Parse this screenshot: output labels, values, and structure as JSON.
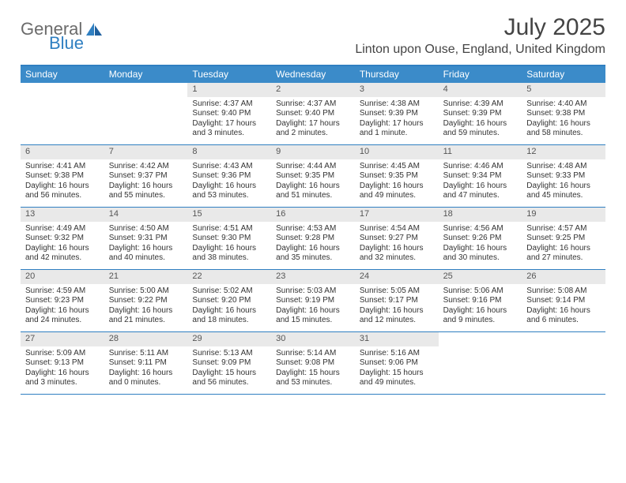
{
  "logo": {
    "text1": "General",
    "text2": "Blue"
  },
  "title": "July 2025",
  "location": "Linton upon Ouse, England, United Kingdom",
  "colors": {
    "header_bg": "#3b8bc9",
    "border": "#2f7fc1",
    "daynum_bg": "#e9e9e9"
  },
  "dow": [
    "Sunday",
    "Monday",
    "Tuesday",
    "Wednesday",
    "Thursday",
    "Friday",
    "Saturday"
  ],
  "weeks": [
    [
      {
        "n": "",
        "sunrise": "",
        "sunset": "",
        "daylight": ""
      },
      {
        "n": "",
        "sunrise": "",
        "sunset": "",
        "daylight": ""
      },
      {
        "n": "1",
        "sunrise": "Sunrise: 4:37 AM",
        "sunset": "Sunset: 9:40 PM",
        "daylight": "Daylight: 17 hours and 3 minutes."
      },
      {
        "n": "2",
        "sunrise": "Sunrise: 4:37 AM",
        "sunset": "Sunset: 9:40 PM",
        "daylight": "Daylight: 17 hours and 2 minutes."
      },
      {
        "n": "3",
        "sunrise": "Sunrise: 4:38 AM",
        "sunset": "Sunset: 9:39 PM",
        "daylight": "Daylight: 17 hours and 1 minute."
      },
      {
        "n": "4",
        "sunrise": "Sunrise: 4:39 AM",
        "sunset": "Sunset: 9:39 PM",
        "daylight": "Daylight: 16 hours and 59 minutes."
      },
      {
        "n": "5",
        "sunrise": "Sunrise: 4:40 AM",
        "sunset": "Sunset: 9:38 PM",
        "daylight": "Daylight: 16 hours and 58 minutes."
      }
    ],
    [
      {
        "n": "6",
        "sunrise": "Sunrise: 4:41 AM",
        "sunset": "Sunset: 9:38 PM",
        "daylight": "Daylight: 16 hours and 56 minutes."
      },
      {
        "n": "7",
        "sunrise": "Sunrise: 4:42 AM",
        "sunset": "Sunset: 9:37 PM",
        "daylight": "Daylight: 16 hours and 55 minutes."
      },
      {
        "n": "8",
        "sunrise": "Sunrise: 4:43 AM",
        "sunset": "Sunset: 9:36 PM",
        "daylight": "Daylight: 16 hours and 53 minutes."
      },
      {
        "n": "9",
        "sunrise": "Sunrise: 4:44 AM",
        "sunset": "Sunset: 9:35 PM",
        "daylight": "Daylight: 16 hours and 51 minutes."
      },
      {
        "n": "10",
        "sunrise": "Sunrise: 4:45 AM",
        "sunset": "Sunset: 9:35 PM",
        "daylight": "Daylight: 16 hours and 49 minutes."
      },
      {
        "n": "11",
        "sunrise": "Sunrise: 4:46 AM",
        "sunset": "Sunset: 9:34 PM",
        "daylight": "Daylight: 16 hours and 47 minutes."
      },
      {
        "n": "12",
        "sunrise": "Sunrise: 4:48 AM",
        "sunset": "Sunset: 9:33 PM",
        "daylight": "Daylight: 16 hours and 45 minutes."
      }
    ],
    [
      {
        "n": "13",
        "sunrise": "Sunrise: 4:49 AM",
        "sunset": "Sunset: 9:32 PM",
        "daylight": "Daylight: 16 hours and 42 minutes."
      },
      {
        "n": "14",
        "sunrise": "Sunrise: 4:50 AM",
        "sunset": "Sunset: 9:31 PM",
        "daylight": "Daylight: 16 hours and 40 minutes."
      },
      {
        "n": "15",
        "sunrise": "Sunrise: 4:51 AM",
        "sunset": "Sunset: 9:30 PM",
        "daylight": "Daylight: 16 hours and 38 minutes."
      },
      {
        "n": "16",
        "sunrise": "Sunrise: 4:53 AM",
        "sunset": "Sunset: 9:28 PM",
        "daylight": "Daylight: 16 hours and 35 minutes."
      },
      {
        "n": "17",
        "sunrise": "Sunrise: 4:54 AM",
        "sunset": "Sunset: 9:27 PM",
        "daylight": "Daylight: 16 hours and 32 minutes."
      },
      {
        "n": "18",
        "sunrise": "Sunrise: 4:56 AM",
        "sunset": "Sunset: 9:26 PM",
        "daylight": "Daylight: 16 hours and 30 minutes."
      },
      {
        "n": "19",
        "sunrise": "Sunrise: 4:57 AM",
        "sunset": "Sunset: 9:25 PM",
        "daylight": "Daylight: 16 hours and 27 minutes."
      }
    ],
    [
      {
        "n": "20",
        "sunrise": "Sunrise: 4:59 AM",
        "sunset": "Sunset: 9:23 PM",
        "daylight": "Daylight: 16 hours and 24 minutes."
      },
      {
        "n": "21",
        "sunrise": "Sunrise: 5:00 AM",
        "sunset": "Sunset: 9:22 PM",
        "daylight": "Daylight: 16 hours and 21 minutes."
      },
      {
        "n": "22",
        "sunrise": "Sunrise: 5:02 AM",
        "sunset": "Sunset: 9:20 PM",
        "daylight": "Daylight: 16 hours and 18 minutes."
      },
      {
        "n": "23",
        "sunrise": "Sunrise: 5:03 AM",
        "sunset": "Sunset: 9:19 PM",
        "daylight": "Daylight: 16 hours and 15 minutes."
      },
      {
        "n": "24",
        "sunrise": "Sunrise: 5:05 AM",
        "sunset": "Sunset: 9:17 PM",
        "daylight": "Daylight: 16 hours and 12 minutes."
      },
      {
        "n": "25",
        "sunrise": "Sunrise: 5:06 AM",
        "sunset": "Sunset: 9:16 PM",
        "daylight": "Daylight: 16 hours and 9 minutes."
      },
      {
        "n": "26",
        "sunrise": "Sunrise: 5:08 AM",
        "sunset": "Sunset: 9:14 PM",
        "daylight": "Daylight: 16 hours and 6 minutes."
      }
    ],
    [
      {
        "n": "27",
        "sunrise": "Sunrise: 5:09 AM",
        "sunset": "Sunset: 9:13 PM",
        "daylight": "Daylight: 16 hours and 3 minutes."
      },
      {
        "n": "28",
        "sunrise": "Sunrise: 5:11 AM",
        "sunset": "Sunset: 9:11 PM",
        "daylight": "Daylight: 16 hours and 0 minutes."
      },
      {
        "n": "29",
        "sunrise": "Sunrise: 5:13 AM",
        "sunset": "Sunset: 9:09 PM",
        "daylight": "Daylight: 15 hours and 56 minutes."
      },
      {
        "n": "30",
        "sunrise": "Sunrise: 5:14 AM",
        "sunset": "Sunset: 9:08 PM",
        "daylight": "Daylight: 15 hours and 53 minutes."
      },
      {
        "n": "31",
        "sunrise": "Sunrise: 5:16 AM",
        "sunset": "Sunset: 9:06 PM",
        "daylight": "Daylight: 15 hours and 49 minutes."
      },
      {
        "n": "",
        "sunrise": "",
        "sunset": "",
        "daylight": ""
      },
      {
        "n": "",
        "sunrise": "",
        "sunset": "",
        "daylight": ""
      }
    ]
  ]
}
